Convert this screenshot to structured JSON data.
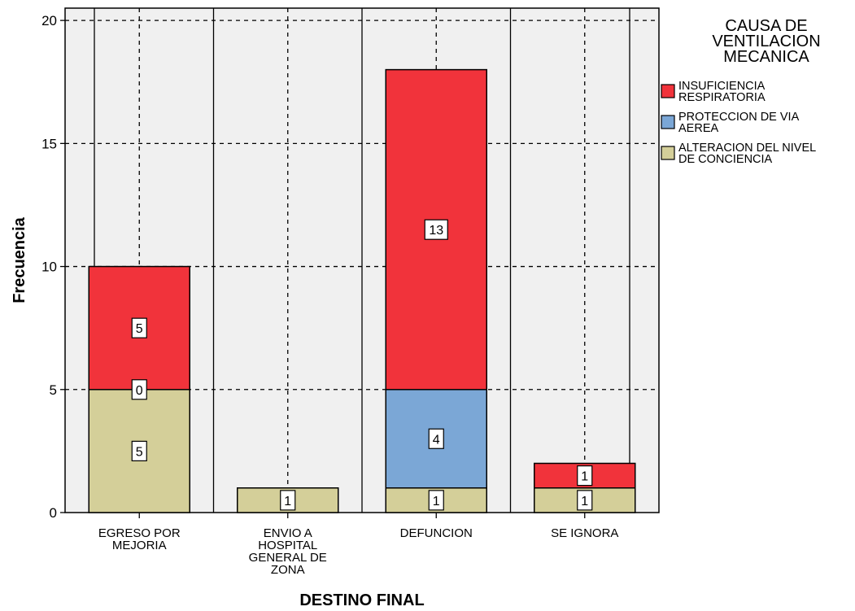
{
  "chart_data": {
    "type": "bar",
    "stacked": true,
    "categories": [
      [
        "EGRESO POR",
        "MEJORIA"
      ],
      [
        "ENVIO A",
        "HOSPITAL",
        "GENERAL DE",
        "ZONA"
      ],
      [
        "DEFUNCION"
      ],
      [
        "SE IGNORA"
      ]
    ],
    "series": [
      {
        "name": "ALTERACION DEL NIVEL DE CONCIENCIA",
        "legend_lines": [
          "ALTERACION DEL NIVEL",
          "DE CONCIENCIA"
        ],
        "color": "#d4cf99",
        "values": [
          5,
          1,
          1,
          1
        ]
      },
      {
        "name": "PROTECCION DE VIA AEREA",
        "legend_lines": [
          "PROTECCION DE VIA",
          "AEREA"
        ],
        "color": "#7ba7d6",
        "values": [
          0,
          0,
          4,
          0
        ]
      },
      {
        "name": "INSUFICIENCIA RESPIRATORIA",
        "legend_lines": [
          "INSUFICIENCIA",
          "RESPIRATORIA"
        ],
        "color": "#f1333b",
        "values": [
          5,
          0,
          13,
          1
        ]
      }
    ],
    "data_labels": [
      {
        "category": 0,
        "series": 0,
        "text": "5"
      },
      {
        "category": 0,
        "series": 1,
        "text": "0"
      },
      {
        "category": 0,
        "series": 2,
        "text": "5"
      },
      {
        "category": 1,
        "series": 0,
        "text": "1"
      },
      {
        "category": 2,
        "series": 0,
        "text": "1"
      },
      {
        "category": 2,
        "series": 1,
        "text": "4"
      },
      {
        "category": 2,
        "series": 2,
        "text": "13"
      },
      {
        "category": 3,
        "series": 0,
        "text": "1"
      },
      {
        "category": 3,
        "series": 2,
        "text": "1"
      }
    ],
    "legend_order": [
      2,
      1,
      0
    ],
    "legend_title": [
      "CAUSA DE",
      "VENTILACION",
      "MECANICA"
    ],
    "xlabel": "DESTINO FINAL",
    "ylabel": "Frecuencia",
    "ylim": [
      0,
      20.5
    ],
    "yticks": [
      0,
      5,
      10,
      15,
      20
    ],
    "grid": true,
    "legend_position": "right",
    "plot_background": "#f0f0f0"
  }
}
